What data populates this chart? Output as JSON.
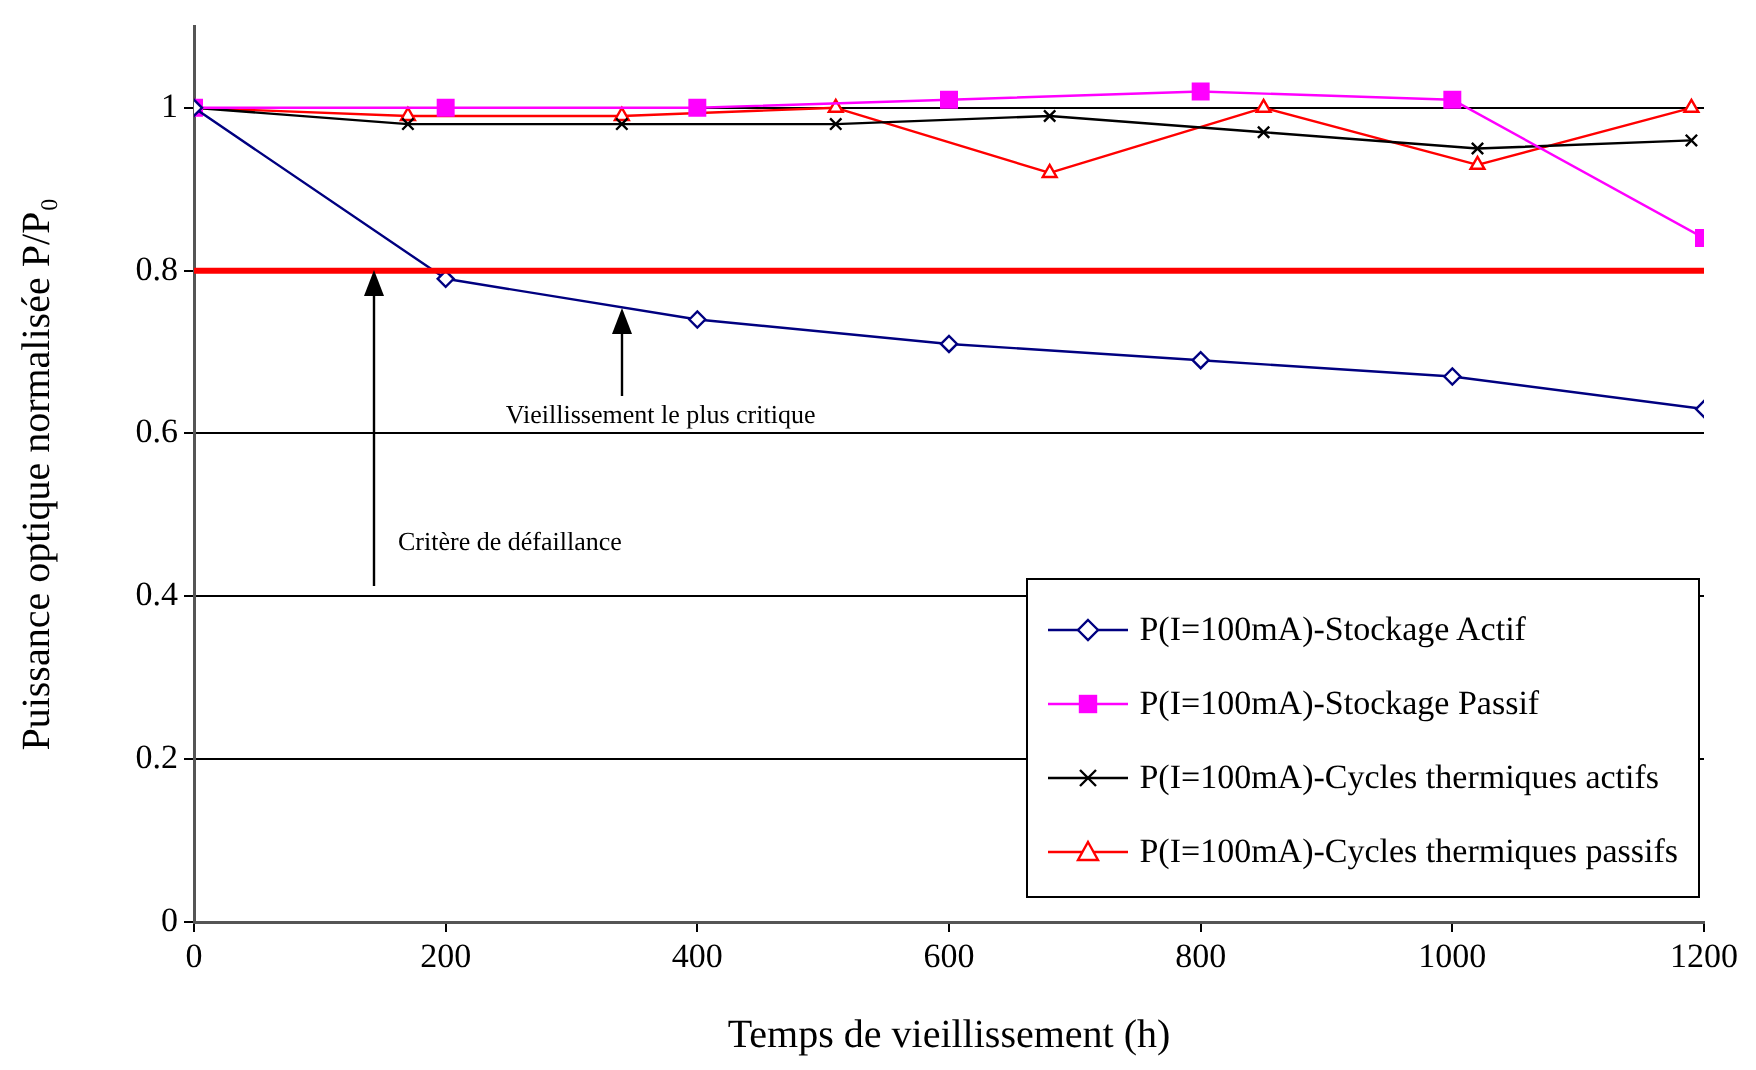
{
  "chart_data": {
    "type": "line",
    "xlabel": "Temps de vieillissement (h)",
    "ylabel": "Puissance optique normalisée P/P₀",
    "xlim": [
      0,
      1200
    ],
    "xticks": [
      0,
      200,
      400,
      600,
      800,
      1000,
      1200
    ],
    "ylim": [
      0,
      1.1
    ],
    "yticks": [
      0,
      0.2,
      0.4,
      0.6,
      0.8,
      1
    ],
    "grid": "y",
    "legend": "bottom right",
    "line_style": "solid",
    "series": [
      {
        "name": "P(I=100mA)-Stockage Actif",
        "color": "#000080",
        "marker": "diamond",
        "x": [
          0,
          200,
          400,
          600,
          800,
          1000,
          1200
        ],
        "values": [
          1,
          0.79,
          0.74,
          0.71,
          0.69,
          0.67,
          0.63
        ]
      },
      {
        "name": "P(I=100mA)-Stockage Passif",
        "color": "#ff00ff",
        "marker": "square",
        "x": [
          0,
          200,
          400,
          600,
          800,
          1000,
          1200
        ],
        "values": [
          1,
          1,
          1,
          1.01,
          1.02,
          1.01,
          0.84
        ]
      },
      {
        "name": "P(I=100mA)-Cycles thermiques actifs",
        "color": "#000000",
        "marker": "cross",
        "x": [
          0,
          170,
          340,
          510,
          680,
          850,
          1020,
          1190
        ],
        "values": [
          1,
          0.98,
          0.98,
          0.98,
          0.99,
          0.97,
          0.95,
          0.96
        ]
      },
      {
        "name": "P(I=100mA)-Cycles thermiques passifs",
        "color": "#ff0000",
        "marker": "triangle",
        "x": [
          0,
          170,
          340,
          510,
          680,
          850,
          1020,
          1190
        ],
        "values": [
          1,
          0.99,
          0.99,
          1,
          0.92,
          1,
          0.93,
          1
        ]
      }
    ],
    "ref_lines": [
      {
        "axis": "y",
        "value": 0.8,
        "color": "#ff0000"
      }
    ],
    "annotations": [
      "Vieillissement le plus critique",
      "Critère de défaillance"
    ]
  }
}
